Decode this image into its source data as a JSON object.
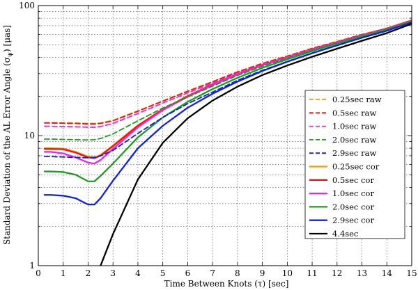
{
  "chart_data": {
    "type": "line",
    "title": "",
    "xlabel": "Time Between Knots (τ) [sec]",
    "ylabel": "Standard Deviation of the AL Error Angle (σψ) [μas]",
    "ylabel_parts": {
      "before": "Standard Deviation of the AL Error Angle (",
      "sigma": "σ",
      "sub": "ψ",
      "after": ") [μas]"
    },
    "xlim": [
      0,
      15
    ],
    "ylim": [
      1,
      100
    ],
    "yscale": "log",
    "grid": true,
    "legend_position": "center-right",
    "x_ticks": [
      "0",
      "1",
      "2",
      "3",
      "4",
      "5",
      "6",
      "7",
      "8",
      "9",
      "10",
      "11",
      "12",
      "13",
      "14",
      "15"
    ],
    "y_ticks": [
      "1",
      "10",
      "100"
    ],
    "x": [
      0.25,
      0.5,
      1.0,
      1.5,
      2.0,
      2.25,
      2.5,
      3,
      4,
      5,
      6,
      7,
      8,
      9,
      10,
      11,
      12,
      13,
      14,
      15
    ],
    "series": [
      {
        "name": "0.25sec raw",
        "color": "#ff9900",
        "dash": "dashed",
        "values": [
          12.6,
          12.6,
          12.55,
          12.5,
          12.4,
          12.4,
          12.5,
          13.1,
          15.5,
          18.5,
          22,
          26,
          31,
          36,
          41,
          47,
          53,
          60,
          67,
          77
        ]
      },
      {
        "name": "0.5sec raw",
        "color": "#ee1111",
        "dash": "dashed",
        "values": [
          12.5,
          12.5,
          12.45,
          12.4,
          12.3,
          12.3,
          12.4,
          13.0,
          15.4,
          18.4,
          21.9,
          25.9,
          30.8,
          35.8,
          40.8,
          46.8,
          52.8,
          59.8,
          66.8,
          77
        ]
      },
      {
        "name": "1.0sec raw",
        "color": "#ee22ee",
        "dash": "dashed",
        "values": [
          11.8,
          11.8,
          11.75,
          11.7,
          11.6,
          11.6,
          11.75,
          12.4,
          14.8,
          17.8,
          21.3,
          25.3,
          30.2,
          35.2,
          40.3,
          46.2,
          52.4,
          59.3,
          66.5,
          76.5
        ]
      },
      {
        "name": "2.0sec raw",
        "color": "#229922",
        "dash": "dashed",
        "values": [
          9.4,
          9.4,
          9.35,
          9.3,
          9.25,
          9.3,
          9.5,
          10.3,
          13.0,
          16.3,
          19.8,
          24,
          29,
          34.2,
          39.4,
          45.4,
          51.6,
          58.6,
          66,
          76
        ]
      },
      {
        "name": "2.9sec raw",
        "color": "#1122cc",
        "dash": "dashed",
        "values": [
          6.9,
          6.9,
          6.85,
          6.8,
          6.75,
          6.8,
          7.0,
          7.7,
          10.4,
          13.8,
          17.6,
          21.6,
          26.6,
          31.8,
          37.2,
          43.2,
          49.6,
          56.6,
          64.2,
          74.5
        ]
      },
      {
        "name": "0.25sec cor",
        "color": "#ff9900",
        "dash": "solid",
        "values": [
          8.0,
          8.0,
          7.95,
          7.5,
          6.9,
          6.8,
          7.1,
          8.4,
          12.0,
          16.0,
          20.2,
          24.8,
          29.8,
          35,
          40.2,
          46.2,
          52.5,
          59.5,
          66.8,
          77
        ]
      },
      {
        "name": "0.5sec cor",
        "color": "#ee1111",
        "dash": "solid",
        "values": [
          7.9,
          7.9,
          7.85,
          7.4,
          6.8,
          6.7,
          7.0,
          8.3,
          11.9,
          15.9,
          20.1,
          24.7,
          29.7,
          34.9,
          40.1,
          46.1,
          52.4,
          59.4,
          66.7,
          77
        ]
      },
      {
        "name": "1.0sec cor",
        "color": "#ee22ee",
        "dash": "solid",
        "values": [
          7.5,
          7.5,
          7.3,
          6.8,
          6.2,
          6.1,
          6.5,
          7.9,
          11.6,
          15.7,
          19.9,
          24.5,
          29.5,
          34.7,
          39.9,
          45.9,
          52.2,
          59.2,
          66.5,
          76.8
        ]
      },
      {
        "name": "2.0sec cor",
        "color": "#229922",
        "dash": "solid",
        "values": [
          5.3,
          5.3,
          5.25,
          5.0,
          4.45,
          4.45,
          4.9,
          6.1,
          9.7,
          13.8,
          18.2,
          22.8,
          27.8,
          33.2,
          38.6,
          44.6,
          51,
          58.2,
          65.6,
          76
        ]
      },
      {
        "name": "2.9sec cor",
        "color": "#1122dd",
        "dash": "solid",
        "values": [
          3.5,
          3.5,
          3.45,
          3.3,
          2.95,
          2.95,
          3.3,
          4.5,
          8.0,
          11.9,
          16.4,
          21.0,
          26.0,
          31.4,
          37.0,
          43.0,
          49.4,
          56.6,
          64.0,
          74.5
        ]
      },
      {
        "name": "4.4sec",
        "color": "#000000",
        "dash": "solid",
        "values": [
          null,
          null,
          null,
          null,
          null,
          null,
          1.0,
          1.75,
          4.6,
          8.8,
          13.6,
          18.6,
          23.8,
          29.2,
          34.6,
          40.4,
          46.6,
          53.6,
          61.4,
          72.5
        ]
      }
    ]
  }
}
